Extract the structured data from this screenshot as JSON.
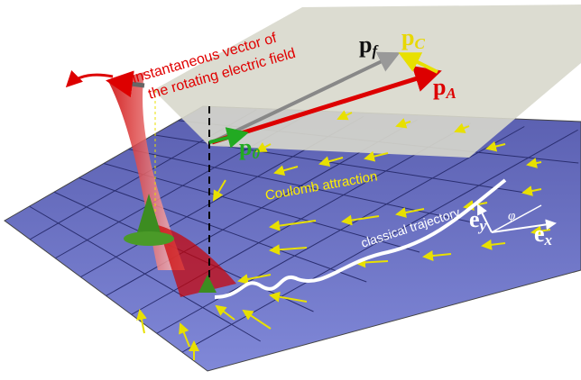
{
  "field_label": {
    "line1": "instantaneous vector of",
    "line2": "the rotating electric field"
  },
  "vectors": [
    {
      "symbol": "p",
      "subscript": "f"
    },
    {
      "symbol": "p",
      "subscript": "C"
    },
    {
      "symbol": "p",
      "subscript": "A"
    },
    {
      "symbol": "p",
      "subscript": "0"
    }
  ],
  "coulomb_label": "Coulomb attraction",
  "trajectory_label": "classical trajectory",
  "axes": {
    "ey": {
      "symbol": "e",
      "subscript": "y"
    },
    "ex": {
      "symbol": "e",
      "subscript": "x"
    },
    "angle": "φ"
  }
}
